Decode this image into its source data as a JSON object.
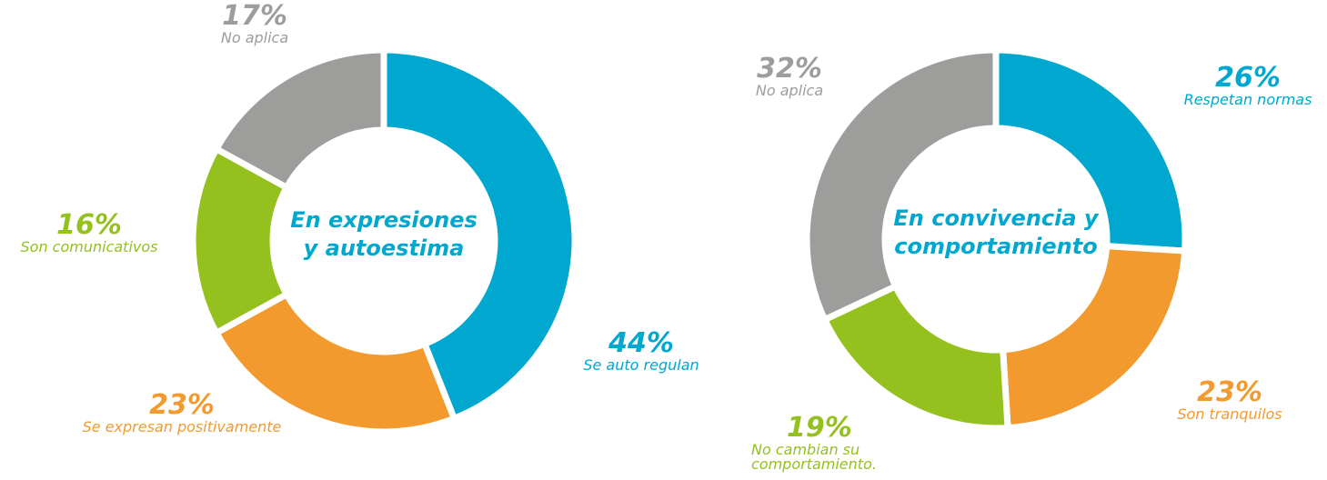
{
  "chart_data": [
    {
      "type": "pie",
      "donut": true,
      "title": [
        "En expresiones",
        "y autoestima"
      ],
      "categories": [
        "Se auto regulan",
        "Se expresan positivamente",
        "Son comunicativos",
        "No aplica"
      ],
      "values": [
        44,
        23,
        16,
        17
      ],
      "value_labels": [
        "44%",
        "23%",
        "16%",
        "17%"
      ],
      "colors": [
        "#00a8cf",
        "#f39a2e",
        "#95c11f",
        "#9d9d9c"
      ]
    },
    {
      "type": "pie",
      "donut": true,
      "title": [
        "En convivencia y",
        "comportamiento"
      ],
      "categories": [
        "Respetan normas",
        "Son tranquilos",
        "No cambian su comportamiento.",
        "No aplica"
      ],
      "values": [
        26,
        23,
        19,
        32
      ],
      "value_labels": [
        "26%",
        "23%",
        "19%",
        "32%"
      ],
      "colors": [
        "#00a8cf",
        "#f39a2e",
        "#95c11f",
        "#9d9d9c"
      ]
    }
  ]
}
